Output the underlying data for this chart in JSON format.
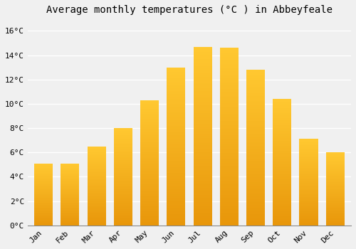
{
  "title": "Average monthly temperatures (°C ) in Abbeyfeale",
  "months": [
    "Jan",
    "Feb",
    "Mar",
    "Apr",
    "May",
    "Jun",
    "Jul",
    "Aug",
    "Sep",
    "Oct",
    "Nov",
    "Dec"
  ],
  "values": [
    5.1,
    5.1,
    6.5,
    8.0,
    10.3,
    13.0,
    14.7,
    14.6,
    12.8,
    10.4,
    7.1,
    6.0
  ],
  "bar_color_bottom": "#E8960A",
  "bar_color_top": "#FFC830",
  "ylim": [
    0,
    17
  ],
  "yticks": [
    0,
    2,
    4,
    6,
    8,
    10,
    12,
    14,
    16
  ],
  "ytick_labels": [
    "0°C",
    "2°C",
    "4°C",
    "6°C",
    "8°C",
    "10°C",
    "12°C",
    "14°C",
    "16°C"
  ],
  "background_color": "#F0F0F0",
  "grid_color": "#FFFFFF",
  "title_fontsize": 10,
  "tick_fontsize": 8,
  "bar_width": 0.7,
  "n_gradient_steps": 100
}
